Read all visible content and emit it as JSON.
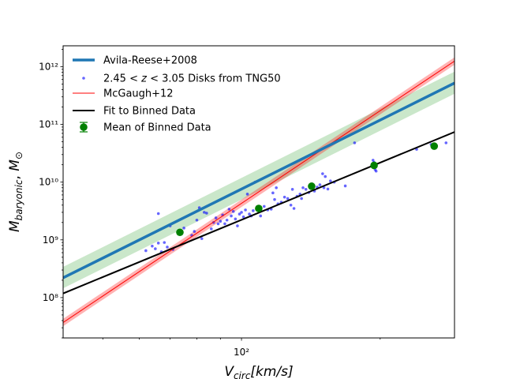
{
  "chart_data": {
    "type": "scatter",
    "xlabel": "V_circ[km/s]",
    "ylabel": "M_baryonic, M_⊙",
    "xscale": "log",
    "yscale": "log",
    "xlim": [
      41,
      290
    ],
    "ylim": [
      20000000.0,
      2300000000000.0
    ],
    "x_tick_labels": [
      {
        "value": 100,
        "label": "10²"
      }
    ],
    "y_tick_labels": [
      {
        "value": 100000000.0,
        "label": "10⁸"
      },
      {
        "value": 1000000000.0,
        "label": "10⁹"
      },
      {
        "value": 10000000000.0,
        "label": "10¹⁰"
      },
      {
        "value": 100000000000.0,
        "label": "10¹¹"
      },
      {
        "value": 1000000000000.0,
        "label": "10¹²"
      }
    ],
    "legend_position": "upper-left",
    "legend": [
      {
        "label": "Avila-Reese+2008",
        "kind": "thick-line",
        "color": "#1f77b4"
      },
      {
        "label": "2.45 < z < 3.05 Disks from TNG50",
        "kind": "dots",
        "color": "#0000ff"
      },
      {
        "label": "McGaugh+12",
        "kind": "thin-line",
        "color": "#ff0000"
      },
      {
        "label": "Fit to Binned Data",
        "kind": "line",
        "color": "#000000"
      },
      {
        "label": "Mean of Binned Data",
        "kind": "errorbar-marker",
        "color": "#008000"
      }
    ],
    "series": [
      {
        "name": "Avila-Reese+2008",
        "type": "line",
        "color": "#1f77b4",
        "band_color": "#2ca02c",
        "points": [
          [
            41,
            220000000.0
          ],
          [
            290,
            520000000000.0
          ]
        ],
        "band_low": [
          [
            41,
            145000000.0
          ],
          [
            290,
            340000000000.0
          ]
        ],
        "band_high": [
          [
            41,
            340000000.0
          ],
          [
            290,
            820000000000.0
          ]
        ]
      },
      {
        "name": "McGaugh+12",
        "type": "line",
        "color": "#ff0000",
        "points": [
          [
            41,
            37000000.0
          ],
          [
            290,
            1250000000000.0
          ]
        ],
        "band_low": [
          [
            41,
            32000000.0
          ],
          [
            290,
            1080000000000.0
          ]
        ],
        "band_high": [
          [
            41,
            43000000.0
          ],
          [
            290,
            1450000000000.0
          ]
        ]
      },
      {
        "name": "Fit to Binned Data",
        "type": "line",
        "color": "#000000",
        "points": [
          [
            41,
            118000000.0
          ],
          [
            290,
            74000000000.0
          ]
        ]
      },
      {
        "name": "Mean of Binned Data",
        "type": "errorbar",
        "color": "#008000",
        "points": [
          [
            73.5,
            1350000000.0
          ],
          [
            109,
            3500000000.0
          ],
          [
            142,
            8500000000.0
          ],
          [
            194,
            19500000000.0
          ],
          [
            262,
            42000000000.0
          ]
        ]
      },
      {
        "name": "2.45 < z < 3.05 Disks from TNG50",
        "type": "scatter",
        "color": "#0000ff",
        "points": [
          [
            66,
            2850000000.0
          ],
          [
            62,
            650000000.0
          ],
          [
            64,
            780000000.0
          ],
          [
            65,
            700000000.0
          ],
          [
            66,
            880000000.0
          ],
          [
            67,
            620000000.0
          ],
          [
            68,
            900000000.0
          ],
          [
            69,
            750000000.0
          ],
          [
            70,
            1750000000.0
          ],
          [
            71,
            680000000.0
          ],
          [
            73,
            1300000000.0
          ],
          [
            75,
            1600000000.0
          ],
          [
            78,
            1200000000.0
          ],
          [
            79,
            1400000000.0
          ],
          [
            80,
            2200000000.0
          ],
          [
            81,
            3600000000.0
          ],
          [
            82,
            1050000000.0
          ],
          [
            83,
            3000000000.0
          ],
          [
            84,
            2900000000.0
          ],
          [
            86,
            1550000000.0
          ],
          [
            87,
            2000000000.0
          ],
          [
            88,
            2400000000.0
          ],
          [
            89,
            1900000000.0
          ],
          [
            90,
            2100000000.0
          ],
          [
            91,
            2700000000.0
          ],
          [
            92,
            1900000000.0
          ],
          [
            93,
            2200000000.0
          ],
          [
            94,
            3400000000.0
          ],
          [
            95,
            2600000000.0
          ],
          [
            96,
            3100000000.0
          ],
          [
            97,
            2300000000.0
          ],
          [
            98,
            1750000000.0
          ],
          [
            99,
            2800000000.0
          ],
          [
            100,
            3000000000.0
          ],
          [
            101,
            2500000000.0
          ],
          [
            102,
            3300000000.0
          ],
          [
            103,
            6200000000.0
          ],
          [
            104,
            2800000000.0
          ],
          [
            105,
            2600000000.0
          ],
          [
            106,
            3200000000.0
          ],
          [
            107,
            10000000000.0
          ],
          [
            108,
            3400000000.0
          ],
          [
            110,
            2600000000.0
          ],
          [
            112,
            3800000000.0
          ],
          [
            114,
            3300000000.0
          ],
          [
            116,
            3400000000.0
          ],
          [
            117,
            6500000000.0
          ],
          [
            118,
            5000000000.0
          ],
          [
            119,
            8000000000.0
          ],
          [
            120,
            4200000000.0
          ],
          [
            122,
            4500000000.0
          ],
          [
            124,
            5500000000.0
          ],
          [
            126,
            5200000000.0
          ],
          [
            128,
            4000000000.0
          ],
          [
            129,
            7500000000.0
          ],
          [
            130,
            3500000000.0
          ],
          [
            132,
            5700000000.0
          ],
          [
            134,
            6200000000.0
          ],
          [
            135,
            5200000000.0
          ],
          [
            136,
            8000000000.0
          ],
          [
            138,
            7500000000.0
          ],
          [
            140,
            6600000000.0
          ],
          [
            142,
            7800000000.0
          ],
          [
            144,
            7000000000.0
          ],
          [
            146,
            8200000000.0
          ],
          [
            148,
            9000000000.0
          ],
          [
            150,
            14000000000.0
          ],
          [
            151,
            8000000000.0
          ],
          [
            152,
            12500000000.0
          ],
          [
            154,
            7600000000.0
          ],
          [
            156,
            10500000000.0
          ],
          [
            159,
            10000000000.0
          ],
          [
            168,
            8600000000.0
          ],
          [
            176,
            48000000000.0
          ],
          [
            193,
            24000000000.0
          ],
          [
            194,
            22000000000.0
          ],
          [
            195,
            16500000000.0
          ],
          [
            196,
            15500000000.0
          ],
          [
            240,
            37000000000.0
          ],
          [
            258,
            45000000000.0
          ],
          [
            278,
            48000000000.0
          ]
        ]
      }
    ]
  }
}
